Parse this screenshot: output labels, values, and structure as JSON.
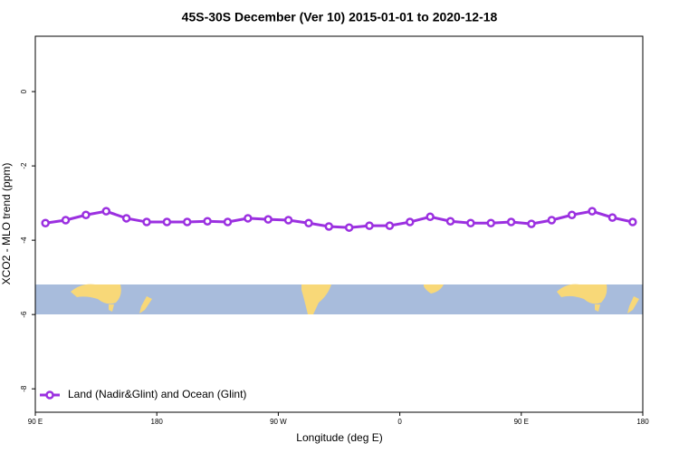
{
  "chart_data": {
    "type": "line",
    "title": "45S-30S December (Ver 10)   2015-01-01 to 2020-12-18",
    "x_label": "Longitude (deg E)",
    "y_label": "XCO2 - MLO trend (ppm)",
    "xlim": [
      90,
      540
    ],
    "xticks": [
      {
        "value": 90,
        "label": "90 E"
      },
      {
        "value": 180,
        "label": "180"
      },
      {
        "value": 270,
        "label": "90 W"
      },
      {
        "value": 360,
        "label": "0"
      },
      {
        "value": 450,
        "label": "90 E"
      },
      {
        "value": 540,
        "label": "180"
      }
    ],
    "ylim": [
      -8.63,
      1.49
    ],
    "yticks": [
      0,
      -2,
      -4,
      -6,
      -8
    ],
    "legend": "bottom-left",
    "x": [
      97.5,
      112.5,
      127.5,
      142.5,
      157.5,
      172.5,
      187.5,
      202.5,
      217.5,
      232.5,
      247.5,
      262.5,
      277.5,
      292.5,
      307.5,
      322.5,
      337.5,
      352.5,
      367.5,
      382.5,
      397.5,
      412.5,
      427.5,
      442.5,
      457.5,
      472.5,
      487.5,
      502.5,
      517.5,
      532.5
    ],
    "series": [
      {
        "name": "Land (Nadir&Glint) and Ocean (Glint)",
        "color": "#9b30e0",
        "values": [
          -3.54,
          -3.46,
          -3.32,
          -3.22,
          -3.41,
          -3.51,
          -3.51,
          -3.51,
          -3.49,
          -3.51,
          -3.41,
          -3.44,
          -3.46,
          -3.54,
          -3.63,
          -3.66,
          -3.61,
          -3.61,
          -3.51,
          -3.37,
          -3.49,
          -3.54,
          -3.54,
          -3.51,
          -3.56,
          -3.46,
          -3.32,
          -3.22,
          -3.39,
          -3.51
        ]
      }
    ]
  }
}
